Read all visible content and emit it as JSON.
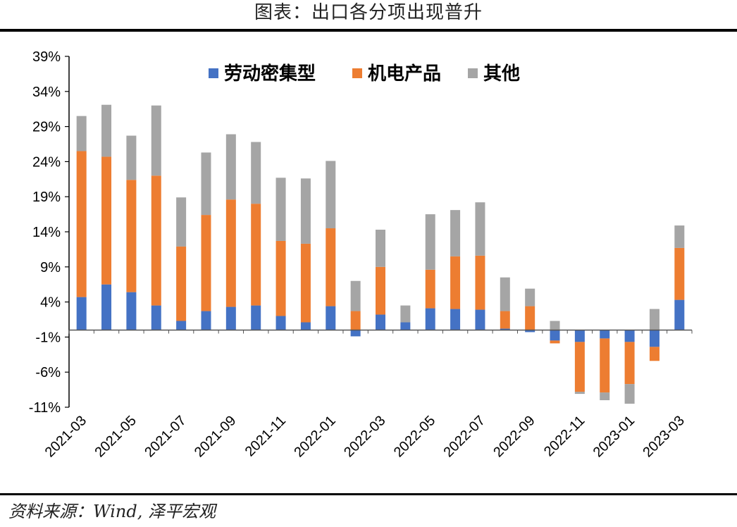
{
  "title": "图表：出口各分项出现普升",
  "source": "资料来源：Wind, 泽平宏观",
  "colors": {
    "labor": "#4472C4",
    "electro": "#ED7D31",
    "other": "#A5A5A5"
  },
  "chart_data": {
    "type": "bar",
    "stacked": true,
    "title": "",
    "ylim": [
      -11,
      39
    ],
    "yticks": [
      "39%",
      "34%",
      "29%",
      "24%",
      "19%",
      "14%",
      "9%",
      "4%",
      "-1%",
      "-6%",
      "-11%"
    ],
    "ytick_values": [
      39,
      34,
      29,
      24,
      19,
      14,
      9,
      4,
      -1,
      -6,
      -11
    ],
    "legend_position": "top",
    "categories": [
      "2021-03",
      "2021-04",
      "2021-05",
      "2021-06",
      "2021-07",
      "2021-08",
      "2021-09",
      "2021-10",
      "2021-11",
      "2021-12",
      "2022-01",
      "2022-02",
      "2022-03",
      "2022-04",
      "2022-05",
      "2022-06",
      "2022-07",
      "2022-08",
      "2022-09",
      "2022-10",
      "2022-11",
      "2022-12",
      "2023-01",
      "2023-02",
      "2023-03"
    ],
    "xtick_labels": [
      "2021-03",
      "2021-05",
      "2021-07",
      "2021-09",
      "2021-11",
      "2022-01",
      "2022-03",
      "2022-05",
      "2022-07",
      "2022-09",
      "2022-11",
      "2023-01",
      "2023-03"
    ],
    "series": [
      {
        "name": "劳动密集型",
        "values": [
          4.7,
          6.5,
          5.4,
          3.5,
          1.3,
          2.7,
          3.3,
          3.5,
          2.0,
          1.1,
          3.4,
          -0.9,
          2.2,
          1.1,
          3.1,
          3.0,
          2.9,
          0.2,
          -0.3,
          -1.5,
          -1.7,
          -1.2,
          -1.7,
          -2.4,
          4.3
        ]
      },
      {
        "name": "机电产品",
        "values": [
          20.8,
          18.2,
          16.0,
          18.5,
          10.6,
          13.7,
          15.3,
          14.5,
          10.7,
          11.2,
          11.1,
          2.7,
          6.8,
          0.0,
          5.5,
          7.5,
          7.7,
          2.5,
          3.4,
          -0.4,
          -7.1,
          -7.7,
          -6.0,
          -2.0,
          7.4
        ]
      },
      {
        "name": "其他",
        "values": [
          5.0,
          7.4,
          6.3,
          10.0,
          7.0,
          8.9,
          9.3,
          8.8,
          9.0,
          9.3,
          9.6,
          4.3,
          5.3,
          2.4,
          7.9,
          6.6,
          7.6,
          4.8,
          2.5,
          1.3,
          -0.3,
          -1.1,
          -2.8,
          3.0,
          3.2
        ]
      }
    ]
  }
}
